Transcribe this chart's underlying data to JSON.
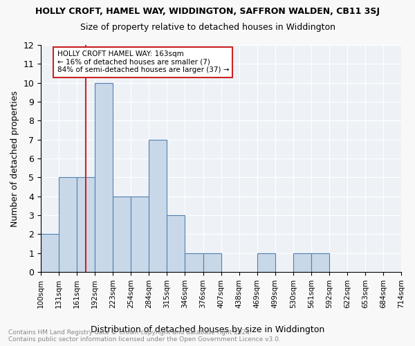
{
  "title": "HOLLY CROFT, HAMEL WAY, WIDDINGTON, SAFFRON WALDEN, CB11 3SJ",
  "subtitle": "Size of property relative to detached houses in Widdington",
  "xlabel": "Distribution of detached houses by size in Widdington",
  "ylabel": "Number of detached properties",
  "bins": [
    "100sqm",
    "131sqm",
    "161sqm",
    "192sqm",
    "223sqm",
    "254sqm",
    "284sqm",
    "315sqm",
    "346sqm",
    "376sqm",
    "407sqm",
    "438sqm",
    "469sqm",
    "499sqm",
    "530sqm",
    "561sqm",
    "592sqm",
    "622sqm",
    "653sqm",
    "684sqm",
    "714sqm"
  ],
  "counts": [
    2,
    5,
    5,
    10,
    4,
    4,
    7,
    3,
    1,
    1,
    0,
    0,
    1,
    0,
    1,
    1,
    0,
    0,
    0,
    0
  ],
  "bar_color": "#c8d8e8",
  "bar_edge_color": "#5080b0",
  "vline_x_index": 2,
  "vline_color": "#cc2222",
  "ylim": [
    0,
    12
  ],
  "yticks": [
    0,
    1,
    2,
    3,
    4,
    5,
    6,
    7,
    8,
    9,
    10,
    11,
    12
  ],
  "annotation_title": "HOLLY CROFT HAMEL WAY: 163sqm",
  "annotation_line1": "← 16% of detached houses are smaller (7)",
  "annotation_line2": "84% of semi-detached houses are larger (37) →",
  "annotation_box_color": "#ffffff",
  "annotation_box_edge": "#cc2222",
  "footer1": "Contains HM Land Registry data © Crown copyright and database right 2024.",
  "footer2": "Contains public sector information licensed under the Open Government Licence v3.0.",
  "bg_color": "#eef2f7",
  "grid_color": "#ffffff",
  "fig_bg_color": "#f8f8f8"
}
